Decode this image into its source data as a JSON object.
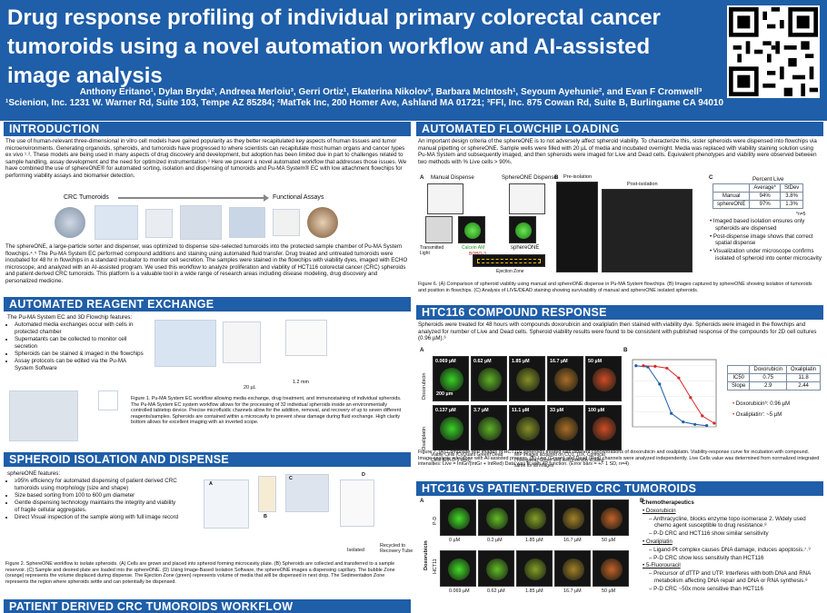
{
  "header": {
    "title": "Drug response profiling of individual primary colorectal cancer tumoroids using a novel automation workflow and AI-assisted image analysis",
    "authors": "Anthony Eritano¹, Dylan Bryda², Andreea Merloiu³, Gerri Ortiz¹, Ekaterina Nikolov³, Barbara McIntosh¹, Seyoum Ayehunie², and Evan F Cromwell³",
    "affiliations": "¹Scienion, Inc. 1231 W. Warner Rd, Suite 103, Tempe AZ 85284; ²MatTek Inc, 200 Homer Ave, Ashland MA 01721; ³FFI, Inc. 875 Cowan Rd, Suite B, Burlingame CA 94010"
  },
  "intro": {
    "heading": "INTRODUCTION",
    "p1": "The use of human-relevant three-dimensional in vitro cell models have gained popularity as they better recapitulated key aspects of human tissues and tumor microenvironments. Generating organoids, spheroids, and tumoroids have progressed to where scientists can recapitulate most human organs and cancer types ex vivo ¹˒². These models are being used in many aspects of drug discovery and development, but adoption has been limited due in part to challenges related to sample handling, assay development and the need for optimized instrumentation.³ Here we present a novel automated workflow that addresses those issues. We have combined the use of sphereONE® for automated sorting, isolation and dispensing of tumoroids and Pu-MA System® EC with low attachment flowchips for performing viability assays and biomarker detection.",
    "flow_left": "CRC Tumoroids",
    "flow_right": "Functional Assays",
    "p2": "The sphereONE, a large-particle sorter and dispenser, was optimized to dispense size-selected tumoroids into the protected sample chamber of Pu-MA System flowchips.⁴˒⁵ The Pu-MA System EC performed compound additions and staining using automated fluid transfer. Drug treated and untreated tumoroids were incubated for 48 hr in flowchips in a standard incubator to monitor cell secretion. The samples were stained in the flowchips with viability dyes, imaged with ECHO microscope, and analyzed with an AI-assisted program. We used this workflow to analyze proliferation and viability of HCT116 colorectal cancer (CRC) spheroids and patient-derived CRC tumoroids. This platform is a valuable tool in a wide range of research areas including disease modeling, drug discovery and personalized medicine."
  },
  "reagent": {
    "heading": "AUTOMATED REAGENT EXCHANGE",
    "lead": "The Pu-MA System EC and 3D Flowchip features:",
    "items": [
      "Automated media exchanges occur with cells in protected chamber",
      "Supernatants can be collected to monitor cell secretion",
      "Spheroids can be stained & imaged in the flowchips",
      "Assay protocols can be edited via the Pu-MA System Software"
    ],
    "dim1": "20 µL",
    "dim2": "1.2 mm",
    "caption": "Figure 1. Pu-MA System EC workflow allowing media exchange, drug treatment, and immunostaining of individual spheroids. The Pu-MA System EC system workflow allows for the processing of 32 individual spheroids inside an environmentally controlled tabletop device. Precise microfluidic channels allow for the addition, removal, and recovery of up to seven different reagents/samples. Spheroids are contained within a microcavity to prevent shear damage during fluid exchange. High clarity bottom allows for excellent imaging with an inverted scope."
  },
  "isolation": {
    "heading": "SPHEROID ISOLATION AND DISPENSE",
    "lead": "sphereONE features:",
    "items": [
      "≥95% efficiency for automated dispensing of patient derived CRC tumoroids using morphology (size and shape)",
      "Size based sorting from 100 to 600 µm diameter",
      "Gentle dispensing technology maintains the integrity and viability of fragile cellular aggregates.",
      "Direct Visual inspection of the sample along with full image record"
    ],
    "labels": [
      "A",
      "B",
      "C",
      "D",
      "Isolated",
      "Recycled to Recovery Tube"
    ],
    "caption": "Figure 2. SphereONE workflow to isolate spheroids. (A) Cells are grown and placed into spheroid forming microcavity plate. (B) Spheroids are collected and transferred to a sample reservoir. (C) Sample and desired plate are loaded into the sphereONE. (D) Using Image-Based Isolation Software, the sphereONE images a dispensing capillary. The bubble Zone (orange) represents the volume displaced during dispense. The Ejection Zone (green) represents volume of media that will be dispensed in next drop. The Sedimentation Zone represents the region where spheroids settle and can potentially be dispensed."
  },
  "patient_workflow": {
    "heading": "PATIENT DERIVED CRC TUMOROIDS WORKFLOW"
  },
  "flowchip": {
    "heading": "AUTOMATED FLOWCHIP LOADING",
    "text": "An important design criteria of the sphereONE is to not adversely affect spheroid viability. To characterize this, sister spheroids were dispensed into flowchips via manual pipetting or sphereONE. Sample wells were filled with 20 µL of media and incubated overnight. Media was replaced with viability staining solution using Pu-MA System and subsequently imaged, and then spheroids were imaged for Live and Dead cells. Equivalent phenotypes and viability were observed between two methods with % Live cells > 90%.",
    "panel_a": "A",
    "manual_label": "Manual Dispense",
    "sphereone_label": "SphereONE Dispense",
    "panel_b": "B",
    "pre_label": "Pre-isolation",
    "post_label": "Post-isolation",
    "panel_c": "C",
    "transmitted": "Transmitted Light",
    "calcein": "Calcein AM",
    "bobo": "BOBO-3",
    "sphereone_img": "sphereONE",
    "ejection": "Ejection Zone",
    "table": {
      "title": "Percent Live",
      "headers": [
        "",
        "Average*",
        "StDev"
      ],
      "rows": [
        [
          "Manual",
          "94%",
          "3.8%"
        ],
        [
          "sphereONE",
          "97%",
          "1.3%"
        ]
      ],
      "note": "*n=5"
    },
    "bullets": [
      "Imaged based isolation ensures only spheroids are dispensed",
      "Post-dispense image shows that correct spatial dispense",
      "Visualization under microscope confirms isolated of spheroid into center microcavity"
    ],
    "caption": "Figure 6. (A) Comparison of spheroid viability using manual and sphereONE dispense in Pu-MA System flowchips. (B) Images captured by sphereONE showing isolation of tumoroids and position in flowchips. (C) Analysis of LIVE/DEAD staining showing survivability of manual and sphereONE isolated spheroids."
  },
  "hct": {
    "heading": "HTC116 COMPOUND RESPONSE",
    "text": "Spheroids were treated for 48 hours with compounds doxorubicin and oxaliplatin then stained with viability dye. Spheroids were imaged in the flowchips and analyzed for number of Live and Dead cells. Spheroid viability results were found to be consistent with published response of the compounds for 2D cell cultures (0.96 µM).⁶",
    "panel_a": "A",
    "panel_b": "B",
    "row_labels": [
      "Doxorubicin",
      "Oxaliplatin"
    ],
    "dox_conc": [
      "0.069 µM",
      "0.62 µM",
      "1.85 µM",
      "16.7 µM",
      "50 µM"
    ],
    "oxa_conc": [
      "0.137 µM",
      "3.7 µM",
      "11.1 µM",
      "33 µM",
      "100 µM"
    ],
    "scale": "200 µm",
    "legend1": "Viable Cells (CyQuant Green) Dead Cells (Eth-D-1 Red)",
    "legend2": "MIP images acquired on CQ1, 10X, Confocal (Yokogawa) Green and Red intensity scaling same for all images",
    "table": {
      "headers": [
        "",
        "Doxorubicin",
        "Oxaliplatin"
      ],
      "rows": [
        [
          "IC50",
          "0.75",
          "11.8"
        ],
        [
          "Slope",
          "2.9",
          "2.44"
        ]
      ]
    },
    "ref1": "Doxorubicin⁶: 0.96 µM",
    "ref2": "Oxaliplatin⁷: ~5 µM",
    "caption": "Figure 7. (A) Composite MIP images of HCT116 spheroids treated with different concentrations of doxorubicin and oxaliplatin. Viability-response curve for incubation with compound. Image analysis was done with AI-assisted process. (B) Live (Green) and Dead (Red) channels were analyzed independently. Live Cells value was determined from normalized integrated intensities: Live = IntGr/(IntGr + IntRed) Data was fit with 4P function. (Error bars = +/- 1 SD, n=4)"
  },
  "vs": {
    "heading": "HTC116 VS PATIENT-DERIVED CRC TUMOROIDS",
    "panel_a": "A",
    "panel_b": "B",
    "row_label": "Doxorubicin",
    "row1": "P-D",
    "row2": "HCT11",
    "conc1": [
      "0 µM",
      "0.2 µM",
      "1.85 µM",
      "16.7 µM",
      "50 µM"
    ],
    "conc2": [
      "0.069 µM",
      "0.62 µM",
      "1.85 µM",
      "16.7 µM",
      "50 µM"
    ],
    "chemo_title": "Chemotherapeutics",
    "dox_title": "Doxorubicin",
    "dox_items": [
      "Anthracycline, blocks enzyme topo isomerase 2. Widely used chemo agent susceptible to drug resistance.⁸",
      "P-D CRC and HCT116 show similar sensitivity"
    ],
    "oxa_title": "Oxaliplatin",
    "oxa_items": [
      "Ligand-Pt complex causes DNA damage, induces apoptosis.⁷˒⁹",
      "P-D CRC show less sensitivity than HCT116"
    ],
    "fu_title": "5-Fluorouracil",
    "fu_items": [
      "Precursor of dTTP and UTP. Interferes with both DNA and RNA metabolism affecting DNA repair and DNA or RNA synthesis.⁸",
      "P-D CRC ~50x more sensitive than HCT116"
    ]
  },
  "chart_data": {
    "type": "scatter",
    "title": "",
    "xlabel": "",
    "ylabel": "",
    "series": [
      {
        "color": "#1f5ea8",
        "x": [
          0.069,
          0.21,
          0.62,
          1.85,
          5.6,
          16.7,
          50
        ],
        "y": [
          100,
          98,
          70,
          22,
          8,
          4,
          2
        ]
      },
      {
        "color": "#d62a2a",
        "x": [
          0.137,
          0.41,
          1.23,
          3.7,
          11.1,
          33,
          100
        ],
        "y": [
          100,
          99,
          96,
          80,
          48,
          18,
          6
        ]
      }
    ]
  },
  "colors": {
    "brand": "#1f5ea8",
    "live": "#36d13a",
    "dead": "#e23a2a"
  }
}
